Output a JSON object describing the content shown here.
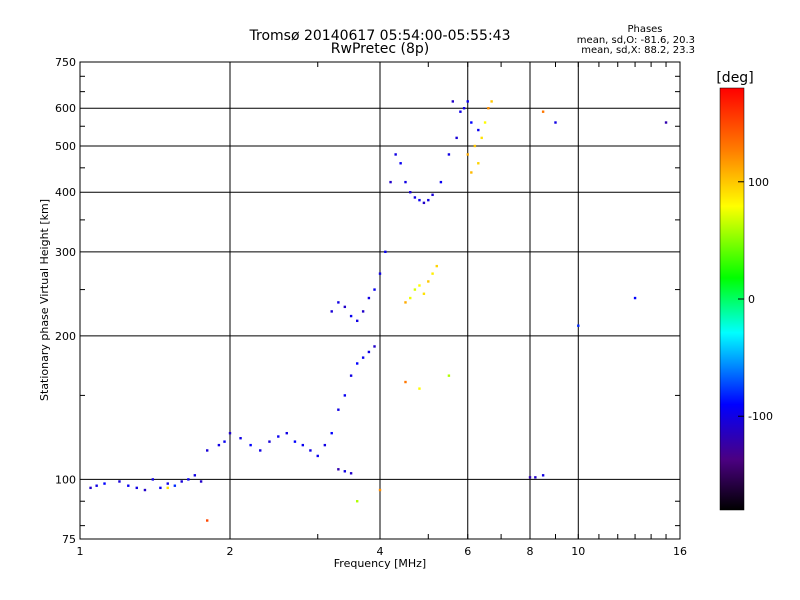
{
  "chart_data": {
    "type": "scatter",
    "title": "Tromsø 20140617 05:54:00-05:55:43",
    "subtitle": "RwPretec (8p)",
    "xlabel": "Frequency [MHz]",
    "ylabel": "Stationary phase Virtual Height [km]",
    "x_scale": "log",
    "y_scale": "log",
    "xlim": [
      1,
      16
    ],
    "ylim": [
      75,
      750
    ],
    "x_ticks": [
      1,
      2,
      4,
      6,
      8,
      10,
      16
    ],
    "y_ticks": [
      75,
      100,
      200,
      300,
      400,
      500,
      600,
      750
    ],
    "grid": true,
    "stats": {
      "heading": "Phases",
      "line_o": "mean, sd,O: -81.6, 20.3",
      "line_x": "mean, sd,X: 88.2, 23.3"
    },
    "colorbar": {
      "label": "[deg]",
      "min": -180,
      "max": 180,
      "ticks": [
        100,
        0,
        -100
      ]
    },
    "series": [
      {
        "color_scale": "phase-deg",
        "points": [
          [
            1.05,
            96,
            -110
          ],
          [
            1.08,
            97,
            -100
          ],
          [
            1.12,
            98,
            -90
          ],
          [
            1.2,
            99,
            -105
          ],
          [
            1.25,
            97,
            -95
          ],
          [
            1.3,
            96,
            -100
          ],
          [
            1.35,
            95,
            -110
          ],
          [
            1.4,
            100,
            -100
          ],
          [
            1.45,
            96,
            -95
          ],
          [
            1.5,
            98,
            -100
          ],
          [
            1.55,
            97,
            -80
          ],
          [
            1.6,
            99,
            -105
          ],
          [
            1.65,
            100,
            -95
          ],
          [
            1.7,
            102,
            -100
          ],
          [
            1.75,
            99,
            -110
          ],
          [
            1.8,
            115,
            -105
          ],
          [
            1.9,
            118,
            -100
          ],
          [
            1.95,
            120,
            -95
          ],
          [
            2.0,
            125,
            -110
          ],
          [
            2.1,
            122,
            -100
          ],
          [
            2.2,
            118,
            -90
          ],
          [
            2.3,
            115,
            -100
          ],
          [
            2.4,
            120,
            -105
          ],
          [
            2.5,
            123,
            -95
          ],
          [
            2.6,
            125,
            -100
          ],
          [
            2.7,
            120,
            -90
          ],
          [
            2.8,
            118,
            -95
          ],
          [
            2.9,
            115,
            -100
          ],
          [
            3.0,
            112,
            -95
          ],
          [
            3.1,
            118,
            -100
          ],
          [
            3.2,
            125,
            -90
          ],
          [
            3.3,
            140,
            -100
          ],
          [
            3.4,
            150,
            -95
          ],
          [
            3.5,
            165,
            -100
          ],
          [
            3.6,
            175,
            -90
          ],
          [
            3.7,
            180,
            -95
          ],
          [
            3.8,
            185,
            -100
          ],
          [
            3.9,
            190,
            -110
          ],
          [
            3.2,
            225,
            -105
          ],
          [
            3.3,
            235,
            -100
          ],
          [
            3.4,
            230,
            -110
          ],
          [
            3.5,
            220,
            -95
          ],
          [
            3.6,
            215,
            -100
          ],
          [
            3.7,
            225,
            -110
          ],
          [
            3.8,
            240,
            -100
          ],
          [
            3.9,
            250,
            -95
          ],
          [
            4.0,
            270,
            -100
          ],
          [
            4.1,
            300,
            -95
          ],
          [
            4.2,
            420,
            -110
          ],
          [
            4.3,
            480,
            -100
          ],
          [
            4.4,
            460,
            -95
          ],
          [
            4.5,
            420,
            -100
          ],
          [
            4.6,
            400,
            -105
          ],
          [
            4.7,
            390,
            -100
          ],
          [
            4.8,
            385,
            -95
          ],
          [
            4.9,
            380,
            -110
          ],
          [
            5.0,
            385,
            -100
          ],
          [
            5.1,
            395,
            -105
          ],
          [
            5.3,
            420,
            -95
          ],
          [
            5.5,
            480,
            -100
          ],
          [
            5.7,
            520,
            -105
          ],
          [
            5.9,
            600,
            -100
          ],
          [
            6.0,
            620,
            -95
          ],
          [
            5.6,
            620,
            -110
          ],
          [
            5.8,
            590,
            -100
          ],
          [
            6.1,
            560,
            -90
          ],
          [
            6.3,
            540,
            -95
          ],
          [
            4.7,
            250,
            70
          ],
          [
            4.8,
            255,
            80
          ],
          [
            4.9,
            245,
            90
          ],
          [
            5.0,
            260,
            100
          ],
          [
            5.1,
            270,
            85
          ],
          [
            5.2,
            280,
            95
          ],
          [
            4.6,
            240,
            75
          ],
          [
            4.5,
            235,
            110
          ],
          [
            6.0,
            480,
            110
          ],
          [
            6.2,
            500,
            100
          ],
          [
            6.4,
            520,
            90
          ],
          [
            6.5,
            560,
            80
          ],
          [
            6.6,
            600,
            120
          ],
          [
            6.7,
            620,
            100
          ],
          [
            6.3,
            460,
            95
          ],
          [
            6.1,
            440,
            105
          ],
          [
            3.3,
            105,
            -120
          ],
          [
            3.4,
            104,
            -100
          ],
          [
            3.5,
            103,
            -110
          ],
          [
            8.0,
            101,
            -120
          ],
          [
            8.2,
            101,
            -110
          ],
          [
            8.5,
            102,
            -100
          ],
          [
            1.5,
            96,
            90
          ],
          [
            3.6,
            90,
            60
          ],
          [
            4.0,
            95,
            120
          ],
          [
            4.5,
            160,
            130
          ],
          [
            4.8,
            155,
            80
          ],
          [
            5.5,
            165,
            60
          ],
          [
            1.8,
            82,
            150
          ],
          [
            8.5,
            590,
            130
          ],
          [
            9.0,
            560,
            -100
          ],
          [
            10.0,
            210,
            -80
          ],
          [
            13.0,
            240,
            -90
          ],
          [
            15.0,
            560,
            -120
          ]
        ]
      }
    ]
  }
}
